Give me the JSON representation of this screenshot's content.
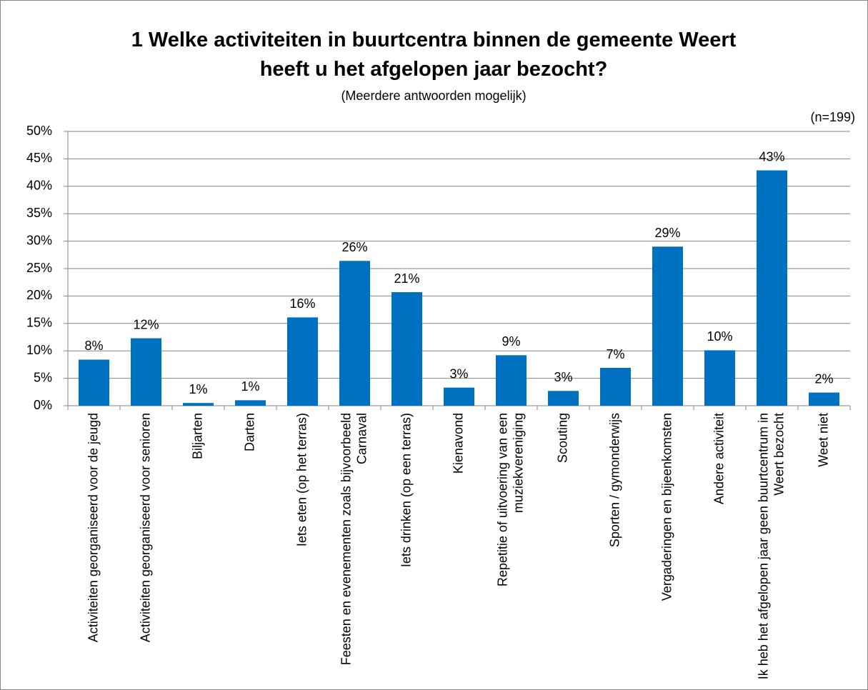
{
  "chart_data": {
    "type": "bar",
    "title": "1 Welke activiteiten in buurtcentra binnen de gemeente Weert heeft u het afgelopen jaar bezocht?",
    "subtitle": "(Meerdere antwoorden mogelijk)",
    "annotation": "(n=199)",
    "categories": [
      "Activiteiten georganiseerd voor de jeugd",
      "Activiteiten georganiseerd voor senioren",
      "Biljarten",
      "Darten",
      "Iets eten (op het terras)",
      "Feesten en evenementen zoals bijvoorbeeld Carnaval",
      "Iets drinken (op een terras)",
      "Kienavond",
      "Repetitie of uitvoering van een muziekvereniging",
      "Scouting",
      "Sporten / gymonderwijs",
      "Vergaderingen en bijeenkomsten",
      "Andere activiteit",
      "Ik heb het afgelopen jaar geen buurtcentrum in Weert bezocht",
      "Weet niet"
    ],
    "values": [
      8.4,
      12.3,
      0.5,
      1.0,
      16.1,
      26.4,
      20.7,
      3.3,
      9.2,
      2.7,
      6.9,
      29.0,
      10.1,
      42.9,
      2.4
    ],
    "value_labels": [
      "8%",
      "12%",
      "1%",
      "1%",
      "16%",
      "26%",
      "21%",
      "3%",
      "9%",
      "3%",
      "7%",
      "29%",
      "10%",
      "43%",
      "2%"
    ],
    "color": "#0070c0",
    "ylim": [
      0,
      50
    ],
    "yticks": [
      {
        "value": 0,
        "label": "0%"
      },
      {
        "value": 5,
        "label": "5%"
      },
      {
        "value": 10,
        "label": "10%"
      },
      {
        "value": 15,
        "label": "15%"
      },
      {
        "value": 20,
        "label": "20%"
      },
      {
        "value": 25,
        "label": "25%"
      },
      {
        "value": 30,
        "label": "30%"
      },
      {
        "value": 35,
        "label": "35%"
      },
      {
        "value": 40,
        "label": "40%"
      },
      {
        "value": 45,
        "label": "45%"
      },
      {
        "value": 50,
        "label": "50%"
      }
    ],
    "grid": true
  }
}
